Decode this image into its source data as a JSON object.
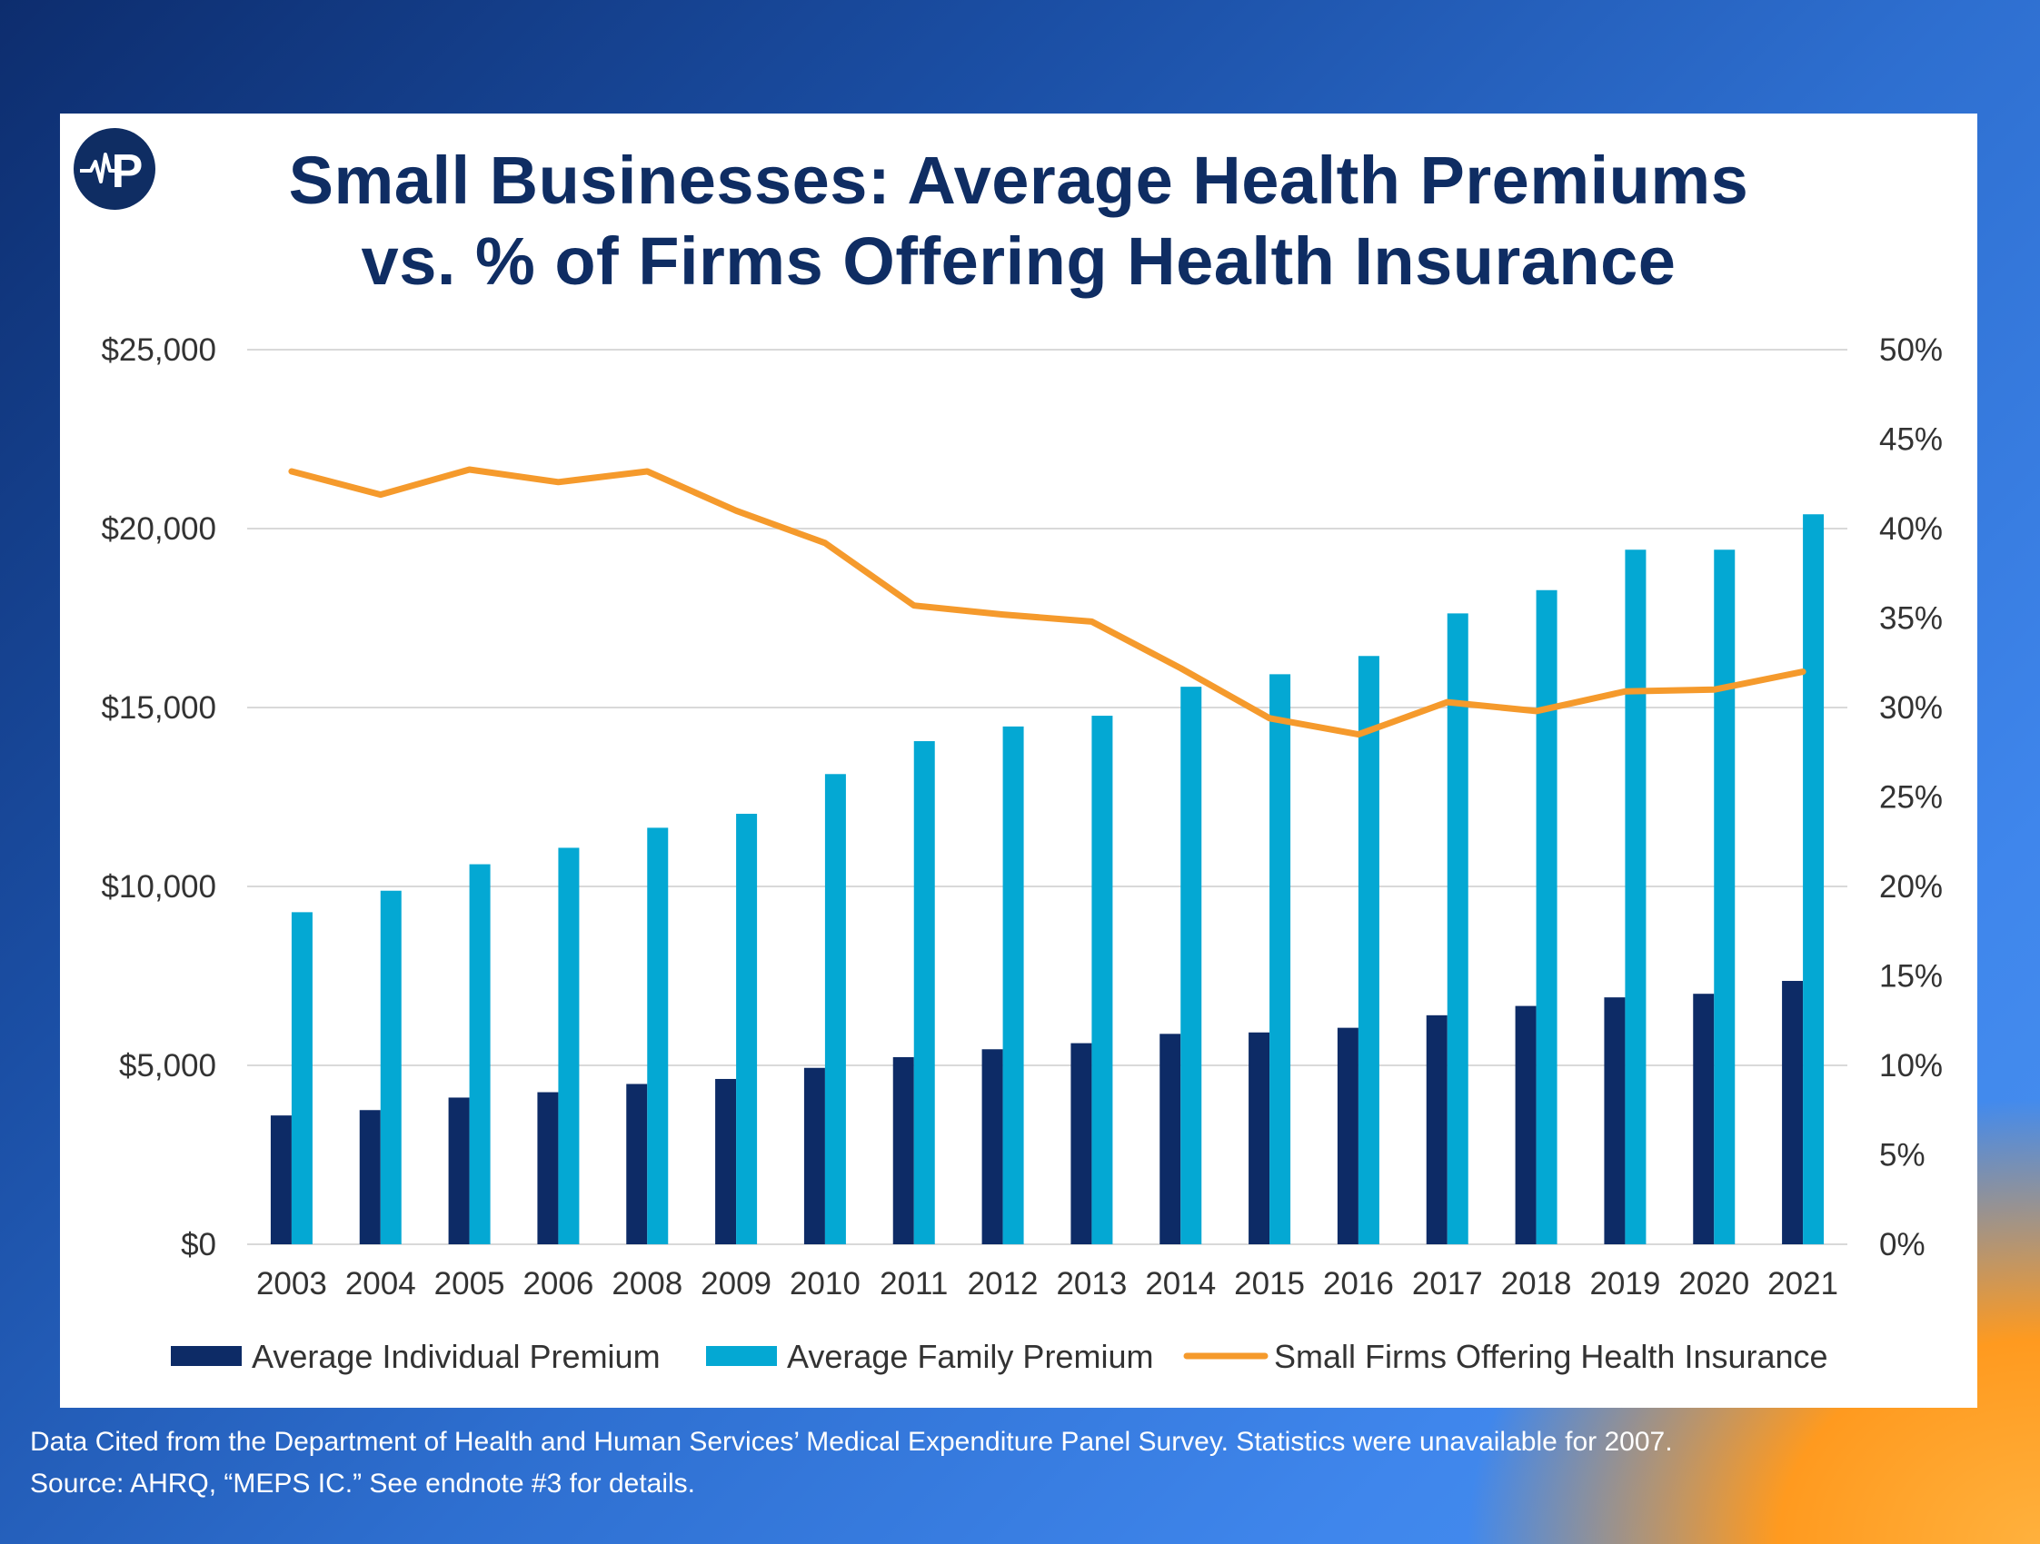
{
  "title_lines": [
    "Small Businesses: Average Health Premiums",
    "vs. % of Firms Offering Health Insurance"
  ],
  "footnote_lines": [
    "Data Cited from the Department of Health and Human Services’ Medical Expenditure Panel Survey. Statistics were unavailable for 2007.",
    "Source: AHRQ, “MEPS IC.” See endnote #3 for details."
  ],
  "logo": {
    "icon": "heartbeat-p-logo-icon",
    "letter": "P"
  },
  "colors": {
    "individual": "#0d2b66",
    "family": "#04a8d3",
    "line": "#f59a2c",
    "title": "#0f2d63",
    "grid": "#d9d9d9"
  },
  "chart_data": {
    "type": "bar",
    "categories": [
      "2003",
      "2004",
      "2005",
      "2006",
      "2008",
      "2009",
      "2010",
      "2011",
      "2012",
      "2013",
      "2014",
      "2015",
      "2016",
      "2017",
      "2018",
      "2019",
      "2020",
      "2021"
    ],
    "series": [
      {
        "name": "Average Individual Premium",
        "type": "bar",
        "axis": "left",
        "values": [
          3600,
          3750,
          4100,
          4250,
          4480,
          4620,
          4930,
          5230,
          5450,
          5620,
          5880,
          5920,
          6050,
          6400,
          6660,
          6900,
          7000,
          7360
        ]
      },
      {
        "name": "Average Family Premium",
        "type": "bar",
        "axis": "left",
        "values": [
          9280,
          9880,
          10620,
          11080,
          11640,
          12030,
          13140,
          14060,
          14470,
          14770,
          15580,
          15930,
          16440,
          17630,
          18280,
          19410,
          19410,
          20400
        ]
      },
      {
        "name": "Small Firms Offering Health Insurance",
        "type": "line",
        "axis": "right",
        "values": [
          43.2,
          41.9,
          43.3,
          42.6,
          43.2,
          41.0,
          39.2,
          35.7,
          35.2,
          34.8,
          32.2,
          29.4,
          28.5,
          30.3,
          29.8,
          30.9,
          31.0,
          32.0
        ]
      }
    ],
    "y_left": {
      "ylim": [
        0,
        25000
      ],
      "ticks": [
        "$0",
        "$5,000",
        "$10,000",
        "$15,000",
        "$20,000",
        "$25,000"
      ]
    },
    "y_right": {
      "ylim": [
        0,
        50
      ],
      "ticks": [
        "0%",
        "5%",
        "10%",
        "15%",
        "20%",
        "25%",
        "30%",
        "35%",
        "40%",
        "45%",
        "50%"
      ]
    },
    "grid": true,
    "legend_position": "bottom"
  }
}
